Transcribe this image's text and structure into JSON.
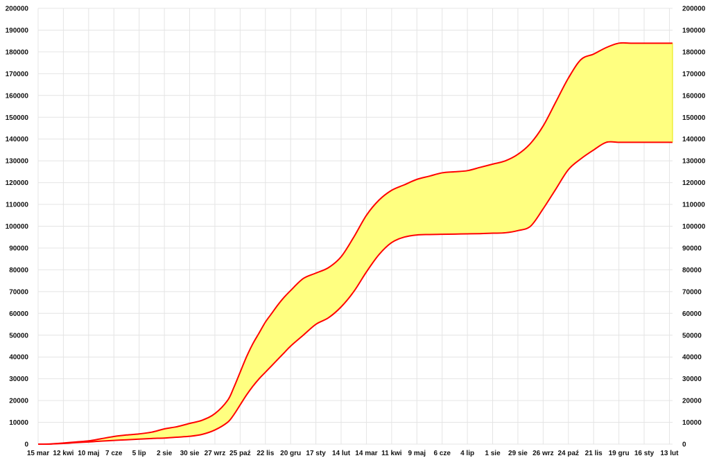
{
  "chart_data": {
    "type": "area",
    "title": "",
    "xlabel": "",
    "ylabel": "",
    "grid": true,
    "legend": "none",
    "colors": {
      "band_fill": "#ffff80",
      "line": "#ff0000",
      "grid": "#e4e4e4",
      "text": "#111111"
    },
    "ylim": [
      0,
      200000
    ],
    "yticks": [
      0,
      10000,
      20000,
      30000,
      40000,
      50000,
      60000,
      70000,
      80000,
      90000,
      100000,
      110000,
      120000,
      130000,
      140000,
      150000,
      160000,
      170000,
      180000,
      190000,
      200000
    ],
    "y_axes": [
      "left",
      "right"
    ],
    "x_tick_labels": [
      "15 mar",
      "12 kwi",
      "10 maj",
      "7 cze",
      "5 lip",
      "2 sie",
      "30 sie",
      "27 wrz",
      "25 paź",
      "22 lis",
      "20 gru",
      "17 sty",
      "14 lut",
      "14 mar",
      "11 kwi",
      "9 maj",
      "6 cze",
      "4 lip",
      "1 sie",
      "29 sie",
      "26 wrz",
      "24 paź",
      "21 lis",
      "19 gru",
      "16 sty",
      "13 lut"
    ],
    "x_tick_weeks": [
      0,
      4,
      8,
      12,
      16,
      20,
      24,
      28,
      32,
      36,
      40,
      44,
      48,
      52,
      56,
      60,
      64,
      68,
      72,
      76,
      80,
      84,
      88,
      92,
      96,
      100
    ],
    "x_range_weeks": [
      0,
      100.5
    ],
    "series": [
      {
        "role": "upper",
        "x_weeks": [
          0,
          2,
          4,
          6,
          8,
          10,
          12,
          14,
          16,
          18,
          20,
          22,
          24,
          26,
          28,
          30,
          31,
          32,
          33,
          34,
          35,
          36,
          37,
          38,
          39,
          40,
          42,
          44,
          46,
          48,
          50,
          52,
          54,
          56,
          58,
          60,
          62,
          64,
          66,
          68,
          70,
          72,
          74,
          76,
          78,
          80,
          82,
          84,
          86,
          88,
          90,
          92,
          94,
          96,
          98,
          100,
          100.5
        ],
        "values": [
          0,
          100,
          500,
          1000,
          1500,
          2500,
          3500,
          4200,
          4700,
          5500,
          7000,
          8000,
          9500,
          11000,
          14000,
          20000,
          26000,
          33000,
          40000,
          46000,
          51000,
          56000,
          60000,
          64000,
          67500,
          70500,
          76000,
          78500,
          81000,
          86000,
          95000,
          105000,
          112000,
          116500,
          119000,
          121500,
          123000,
          124500,
          125000,
          125500,
          127000,
          128500,
          130000,
          133000,
          138000,
          146000,
          157000,
          168000,
          176500,
          179000,
          182000,
          184000,
          184000,
          184000,
          184000,
          184000,
          184000
        ],
        "fit_note": ""
      },
      {
        "role": "lower",
        "x_weeks": [
          0,
          2,
          4,
          6,
          8,
          10,
          12,
          14,
          16,
          18,
          20,
          22,
          24,
          26,
          28,
          30,
          31,
          32,
          33,
          34,
          35,
          36,
          37,
          38,
          39,
          40,
          42,
          44,
          46,
          48,
          50,
          52,
          54,
          56,
          58,
          60,
          62,
          64,
          66,
          68,
          70,
          72,
          74,
          76,
          78,
          80,
          82,
          84,
          86,
          88,
          90,
          92,
          94,
          96,
          98,
          100,
          100.5
        ],
        "values": [
          0,
          50,
          300,
          700,
          1000,
          1400,
          1700,
          2000,
          2300,
          2600,
          2800,
          3200,
          3600,
          4500,
          6500,
          10000,
          13500,
          18000,
          22500,
          26500,
          30000,
          33000,
          36000,
          39000,
          42000,
          45000,
          50000,
          55000,
          58000,
          63000,
          70000,
          79000,
          87000,
          92500,
          95000,
          96000,
          96200,
          96300,
          96400,
          96500,
          96600,
          96800,
          97000,
          98000,
          100000,
          108000,
          117000,
          126000,
          131000,
          135000,
          138500,
          138500,
          138500,
          138500,
          138500,
          138500,
          138500
        ],
        "fit_note": ""
      }
    ]
  }
}
